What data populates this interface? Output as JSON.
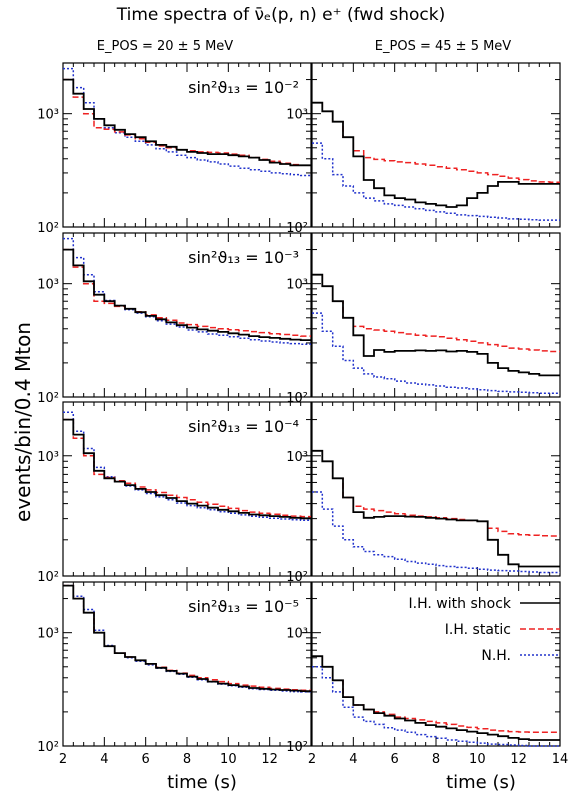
{
  "figure": {
    "title": "Time spectra of ν̄ₑ(p, n) e⁺ (fwd shock)",
    "ylabel": "events/bin/0.4 Mton",
    "xlabel": "time (s)",
    "column_headers": [
      "E_POS = 20 ± 5 MeV",
      "E_POS = 45 ± 5 MeV"
    ],
    "row_labels": [
      "sin²ϑ₁₃ = 10⁻²",
      "sin²ϑ₁₃ = 10⁻³",
      "sin²ϑ₁₃ = 10⁻⁴",
      "sin²ϑ₁₃ = 10⁻⁵"
    ],
    "ytick_labels": [
      "10²",
      "10³"
    ],
    "xtick_labels": [
      "2",
      "4",
      "6",
      "8",
      "10",
      "12",
      "14"
    ],
    "legend": [
      {
        "label": "I.H. with shock",
        "color": "#000000",
        "style": "solid"
      },
      {
        "label": "I.H. static",
        "color": "#ee2222",
        "style": "dashed"
      },
      {
        "label": "N.H.",
        "color": "#2233cc",
        "style": "dotted"
      }
    ]
  },
  "chart_data": {
    "type": "line",
    "layout": "4 rows x 2 columns of step histograms",
    "x_edges": [
      2,
      2.5,
      3,
      3.5,
      4,
      4.5,
      5,
      5.5,
      6,
      6.5,
      7,
      7.5,
      8,
      8.5,
      9,
      9.5,
      10,
      10.5,
      11,
      11.5,
      12,
      12.5,
      13,
      13.5,
      14
    ],
    "xlim": [
      2,
      14
    ],
    "ylim": [
      100,
      2800
    ],
    "yscale": "log",
    "panels": [
      {
        "row": 0,
        "col": 0,
        "series": [
          {
            "name": "I.H. with shock",
            "values": [
              2000,
              1500,
              1100,
              900,
              790,
              720,
              660,
              620,
              570,
              530,
              510,
              480,
              460,
              450,
              440,
              440,
              430,
              420,
              410,
              390,
              370,
              360,
              350,
              350
            ]
          },
          {
            "name": "I.H. static",
            "values": [
              2000,
              1400,
              1000,
              750,
              730,
              690,
              650,
              600,
              560,
              520,
              500,
              480,
              470,
              460,
              455,
              450,
              440,
              430,
              410,
              395,
              380,
              365,
              355,
              350
            ]
          },
          {
            "name": "N.H.",
            "values": [
              2500,
              1700,
              1250,
              900,
              750,
              680,
              620,
              570,
              530,
              490,
              460,
              430,
              410,
              390,
              375,
              360,
              345,
              330,
              320,
              310,
              300,
              295,
              290,
              285
            ]
          }
        ]
      },
      {
        "row": 0,
        "col": 1,
        "series": [
          {
            "name": "I.H. with shock",
            "values": [
              1250,
              1050,
              850,
              620,
              420,
              260,
              220,
              190,
              180,
              175,
              165,
              160,
              155,
              150,
              155,
              180,
              200,
              230,
              250,
              250,
              240,
              240,
              240,
              240
            ]
          },
          {
            "name": "I.H. static",
            "values": [
              1250,
              1050,
              850,
              620,
              470,
              410,
              395,
              385,
              375,
              370,
              360,
              350,
              340,
              330,
              320,
              310,
              300,
              290,
              280,
              270,
              262,
              255,
              250,
              248
            ]
          },
          {
            "name": "N.H.",
            "values": [
              550,
              400,
              290,
              230,
              200,
              180,
              170,
              160,
              155,
              150,
              145,
              140,
              136,
              132,
              128,
              126,
              124,
              122,
              120,
              118,
              117,
              116,
              115,
              115
            ]
          }
        ]
      },
      {
        "row": 1,
        "col": 0,
        "series": [
          {
            "name": "I.H. with shock",
            "values": [
              2000,
              1450,
              1050,
              800,
              700,
              640,
              600,
              560,
              520,
              485,
              455,
              430,
              410,
              395,
              385,
              375,
              365,
              355,
              345,
              338,
              332,
              326,
              321,
              318
            ]
          },
          {
            "name": "I.H. static",
            "values": [
              2000,
              1400,
              1000,
              700,
              670,
              630,
              600,
              565,
              530,
              500,
              475,
              450,
              435,
              420,
              410,
              400,
              392,
              385,
              378,
              370,
              362,
              356,
              350,
              345
            ]
          },
          {
            "name": "N.H.",
            "values": [
              2500,
              1700,
              1200,
              850,
              710,
              640,
              590,
              550,
              510,
              470,
              440,
              415,
              390,
              375,
              360,
              350,
              340,
              330,
              320,
              312,
              306,
              300,
              296,
              292
            ]
          }
        ]
      },
      {
        "row": 1,
        "col": 1,
        "series": [
          {
            "name": "I.H. with shock",
            "values": [
              1200,
              950,
              700,
              500,
              350,
              230,
              260,
              250,
              255,
              255,
              258,
              255,
              258,
              252,
              255,
              250,
              240,
              200,
              180,
              170,
              165,
              160,
              155,
              155
            ]
          },
          {
            "name": "I.H. static",
            "values": [
              1200,
              950,
              700,
              500,
              420,
              400,
              390,
              380,
              370,
              360,
              350,
              345,
              340,
              330,
              320,
              310,
              300,
              290,
              280,
              270,
              265,
              260,
              255,
              252
            ]
          },
          {
            "name": "N.H.",
            "values": [
              550,
              380,
              280,
              210,
              180,
              160,
              150,
              145,
              138,
              133,
              130,
              128,
              125,
              122,
              120,
              118,
              116,
              114,
              112,
              111,
              110,
              109,
              108,
              108
            ]
          }
        ]
      },
      {
        "row": 2,
        "col": 0,
        "series": [
          {
            "name": "I.H. with shock",
            "values": [
              2000,
              1500,
              1050,
              750,
              650,
              610,
              570,
              530,
              500,
              470,
              445,
              420,
              400,
              385,
              370,
              355,
              345,
              335,
              325,
              320,
              315,
              310,
              305,
              302
            ]
          },
          {
            "name": "I.H. static",
            "values": [
              2000,
              1400,
              1000,
              700,
              660,
              620,
              590,
              550,
              520,
              495,
              470,
              450,
              430,
              410,
              395,
              380,
              365,
              350,
              340,
              332,
              326,
              320,
              315,
              312
            ]
          },
          {
            "name": "N.H.",
            "values": [
              2300,
              1600,
              1150,
              800,
              670,
              610,
              560,
              520,
              485,
              455,
              430,
              405,
              385,
              370,
              355,
              342,
              332,
              322,
              314,
              308,
              302,
              298,
              294,
              291
            ]
          }
        ]
      },
      {
        "row": 2,
        "col": 1,
        "series": [
          {
            "name": "I.H. with shock",
            "values": [
              1100,
              900,
              650,
              450,
              340,
              305,
              310,
              315,
              315,
              312,
              310,
              305,
              300,
              295,
              290,
              290,
              285,
              200,
              150,
              125,
              120,
              120,
              120,
              120
            ]
          },
          {
            "name": "I.H. static",
            "values": [
              1100,
              900,
              650,
              450,
              380,
              360,
              350,
              340,
              330,
              320,
              315,
              310,
              305,
              300,
              295,
              290,
              285,
              250,
              235,
              225,
              220,
              218,
              216,
              215
            ]
          },
          {
            "name": "N.H.",
            "values": [
              500,
              360,
              260,
              200,
              175,
              160,
              150,
              145,
              138,
              132,
              128,
              125,
              122,
              120,
              118,
              116,
              114,
              112,
              111,
              110,
              109,
              108,
              107,
              107
            ]
          }
        ]
      },
      {
        "row": 3,
        "col": 0,
        "series": [
          {
            "name": "I.H. with shock",
            "values": [
              2600,
              2000,
              1500,
              1000,
              760,
              660,
              610,
              570,
              530,
              490,
              460,
              435,
              410,
              390,
              370,
              355,
              345,
              335,
              325,
              320,
              315,
              312,
              308,
              305
            ]
          },
          {
            "name": "I.H. static",
            "values": [
              2600,
              2000,
              1500,
              1000,
              760,
              660,
              610,
              570,
              530,
              495,
              465,
              440,
              420,
              400,
              385,
              370,
              355,
              345,
              338,
              330,
              322,
              318,
              314,
              310
            ]
          },
          {
            "name": "N.H.",
            "values": [
              2600,
              2100,
              1600,
              1050,
              770,
              660,
              600,
              560,
              520,
              485,
              455,
              430,
              405,
              385,
              368,
              352,
              340,
              330,
              320,
              315,
              310,
              306,
              302,
              300
            ]
          }
        ]
      },
      {
        "row": 3,
        "col": 1,
        "series": [
          {
            "name": "I.H. with shock",
            "values": [
              620,
              500,
              380,
              270,
              230,
              210,
              195,
              185,
              175,
              168,
              160,
              153,
              148,
              143,
              138,
              134,
              130,
              126,
              122,
              118,
              115,
              113,
              113,
              113
            ]
          },
          {
            "name": "I.H. static",
            "values": [
              620,
              500,
              380,
              270,
              230,
              210,
              200,
              190,
              180,
              175,
              170,
              165,
              160,
              155,
              150,
              146,
              142,
              138,
              136,
              134,
              133,
              132,
              132,
              132
            ]
          },
          {
            "name": "N.H.",
            "values": [
              500,
              400,
              300,
              220,
              180,
              165,
              155,
              145,
              138,
              132,
              126,
              121,
              117,
              113,
              110,
              108,
              106,
              104,
              103,
              102,
              101,
              100,
              100,
              100
            ]
          }
        ]
      }
    ]
  }
}
